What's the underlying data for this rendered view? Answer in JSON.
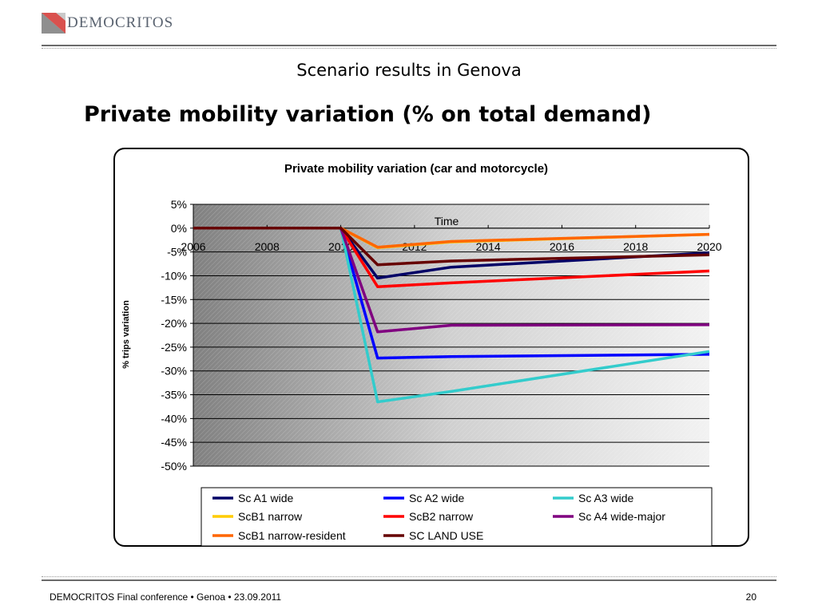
{
  "header": {
    "logo_text": "DEMOCRITOS"
  },
  "slide": {
    "subtitle": "Scenario results in Genova",
    "title": "Private mobility variation (% on total demand)"
  },
  "footer": {
    "left": "DEMOCRITOS Final conference • Genoa • 23.09.2011",
    "page": "20"
  },
  "chart_data": {
    "type": "line",
    "title": "Private mobility variation (car and motorcycle)",
    "xlabel": "Time",
    "ylabel": "% trips variation",
    "x": [
      2006,
      2010,
      2011,
      2013,
      2020
    ],
    "x_ticks": [
      "2006",
      "2008",
      "2010",
      "2012",
      "2014",
      "2016",
      "2018",
      "2020"
    ],
    "x_tick_values": [
      2006,
      2008,
      2010,
      2012,
      2014,
      2016,
      2018,
      2020
    ],
    "y_ticks": [
      "5%",
      "0%",
      "-5%",
      "-10%",
      "-15%",
      "-20%",
      "-25%",
      "-30%",
      "-35%",
      "-40%",
      "-45%",
      "-50%"
    ],
    "y_tick_values": [
      5,
      0,
      -5,
      -10,
      -15,
      -20,
      -25,
      -30,
      -35,
      -40,
      -45,
      -50
    ],
    "xlim": [
      2006,
      2020
    ],
    "ylim": [
      -50,
      5
    ],
    "grid": true,
    "legend_position": "bottom",
    "series": [
      {
        "name": "Sc A1 wide",
        "color": "#000066",
        "values": [
          0,
          0,
          -10.5,
          -8.2,
          -5.2
        ]
      },
      {
        "name": "Sc A2 wide",
        "color": "#0000FF",
        "values": [
          0,
          0,
          -27.3,
          -27.0,
          -26.5
        ]
      },
      {
        "name": "Sc A3 wide",
        "color": "#33CCCC",
        "values": [
          0,
          0,
          -36.5,
          -34.3,
          -25.9
        ]
      },
      {
        "name": "ScB1 narrow",
        "color": "#FFCC00",
        "values": [
          0,
          0,
          -4.1,
          -2.9,
          -1.3
        ]
      },
      {
        "name": "ScB2 narrow",
        "color": "#FF0000",
        "values": [
          0,
          0,
          -12.3,
          -11.5,
          -9.0
        ]
      },
      {
        "name": "Sc A4 wide-major",
        "color": "#800080",
        "values": [
          0,
          0,
          -21.8,
          -20.4,
          -20.3
        ]
      },
      {
        "name": "ScB1 narrow-resident",
        "color": "#FF6600",
        "values": [
          0,
          0,
          -4.0,
          -2.8,
          -1.3
        ]
      },
      {
        "name": "SC LAND USE",
        "color": "#660000",
        "values": [
          0,
          0,
          -7.7,
          -6.9,
          -5.6
        ]
      }
    ]
  }
}
